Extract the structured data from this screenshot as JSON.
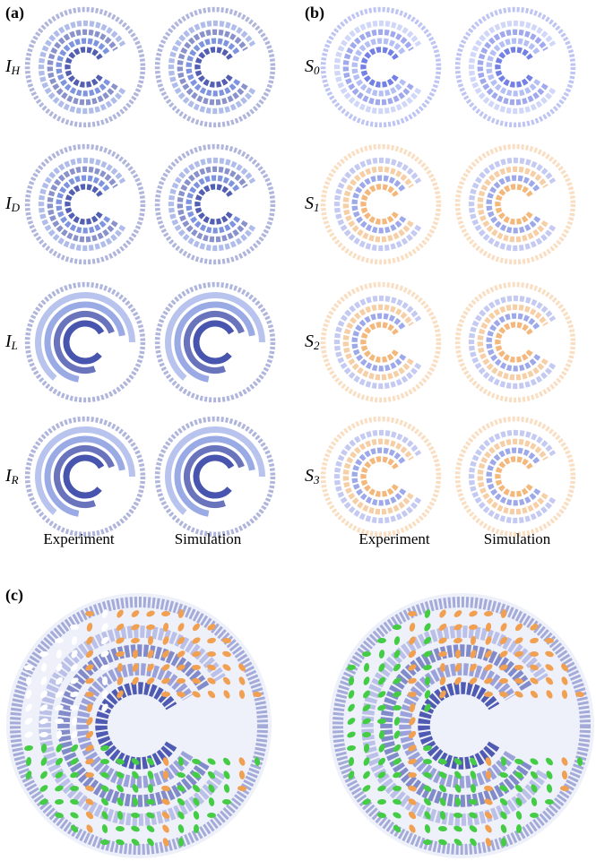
{
  "panels": {
    "a": {
      "label": "(a)",
      "rows": [
        {
          "symbol": "I",
          "subscript": "H"
        },
        {
          "symbol": "I",
          "subscript": "D"
        },
        {
          "symbol": "I",
          "subscript": "L"
        },
        {
          "symbol": "I",
          "subscript": "R"
        }
      ],
      "columns": [
        "Experiment",
        "Simulation"
      ]
    },
    "b": {
      "label": "(b)",
      "rows": [
        {
          "symbol": "S",
          "subscript": "0"
        },
        {
          "symbol": "S",
          "subscript": "1"
        },
        {
          "symbol": "S",
          "subscript": "2"
        },
        {
          "symbol": "S",
          "subscript": "3"
        }
      ],
      "columns": [
        "Experiment",
        "Simulation"
      ]
    },
    "c": {
      "label": "(c)"
    }
  }
}
